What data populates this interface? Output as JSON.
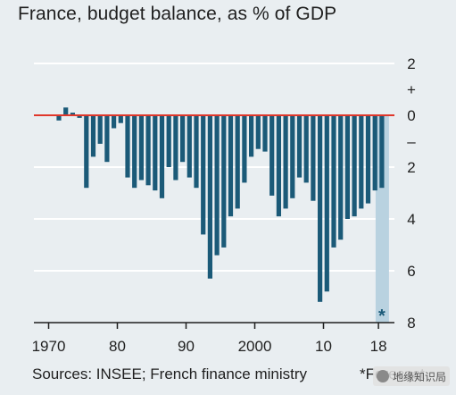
{
  "title": "France, budget balance, as % of GDP",
  "source": "Sources: INSEE; French finance ministry",
  "forecast_note": "*Forecast",
  "watermark_text": "地缘知识局",
  "forecast_marker": "*",
  "colors": {
    "background": "#e9eef1",
    "bar": "#1b5a78",
    "zero_line": "#e0372b",
    "gridline": "#ffffff",
    "forecast_band": "#b9d2e0"
  },
  "chart_data": {
    "type": "bar",
    "title": "France, budget balance, as % of GDP",
    "xlabel": "",
    "ylabel": "",
    "x_tick_labels": [
      "1970",
      "80",
      "90",
      "2000",
      "10",
      "18"
    ],
    "x_tick_years": [
      1970,
      1980,
      1990,
      2000,
      2010,
      2018
    ],
    "y_tick_labels": [
      {
        "value": 2,
        "label": "2"
      },
      {
        "value": 1,
        "label": "+"
      },
      {
        "value": 0,
        "label": "0"
      },
      {
        "value": -1,
        "label": "–"
      },
      {
        "value": -2,
        "label": "2"
      },
      {
        "value": -4,
        "label": "4"
      },
      {
        "value": -6,
        "label": "6"
      },
      {
        "value": -8,
        "label": "8"
      }
    ],
    "ylim": [
      -8,
      2
    ],
    "y_axis_side": "right",
    "grid": true,
    "forecast_years": [
      2018
    ],
    "categories": [
      1971,
      1972,
      1973,
      1974,
      1975,
      1976,
      1977,
      1978,
      1979,
      1980,
      1981,
      1982,
      1983,
      1984,
      1985,
      1986,
      1987,
      1988,
      1989,
      1990,
      1991,
      1992,
      1993,
      1994,
      1995,
      1996,
      1997,
      1998,
      1999,
      2000,
      2001,
      2002,
      2003,
      2004,
      2005,
      2006,
      2007,
      2008,
      2009,
      2010,
      2011,
      2012,
      2013,
      2014,
      2015,
      2016,
      2017,
      2018
    ],
    "values": [
      -0.2,
      0.3,
      0.1,
      -0.1,
      -2.8,
      -1.6,
      -1.1,
      -1.8,
      -0.5,
      -0.3,
      -2.4,
      -2.8,
      -2.5,
      -2.7,
      -2.9,
      -3.2,
      -2.0,
      -2.5,
      -1.8,
      -2.4,
      -2.8,
      -4.6,
      -6.3,
      -5.4,
      -5.1,
      -3.9,
      -3.6,
      -2.6,
      -1.6,
      -1.3,
      -1.4,
      -3.1,
      -3.9,
      -3.6,
      -3.2,
      -2.4,
      -2.6,
      -3.3,
      -7.2,
      -6.8,
      -5.1,
      -4.8,
      -4.0,
      -3.9,
      -3.6,
      -3.4,
      -2.9,
      -2.8
    ]
  }
}
